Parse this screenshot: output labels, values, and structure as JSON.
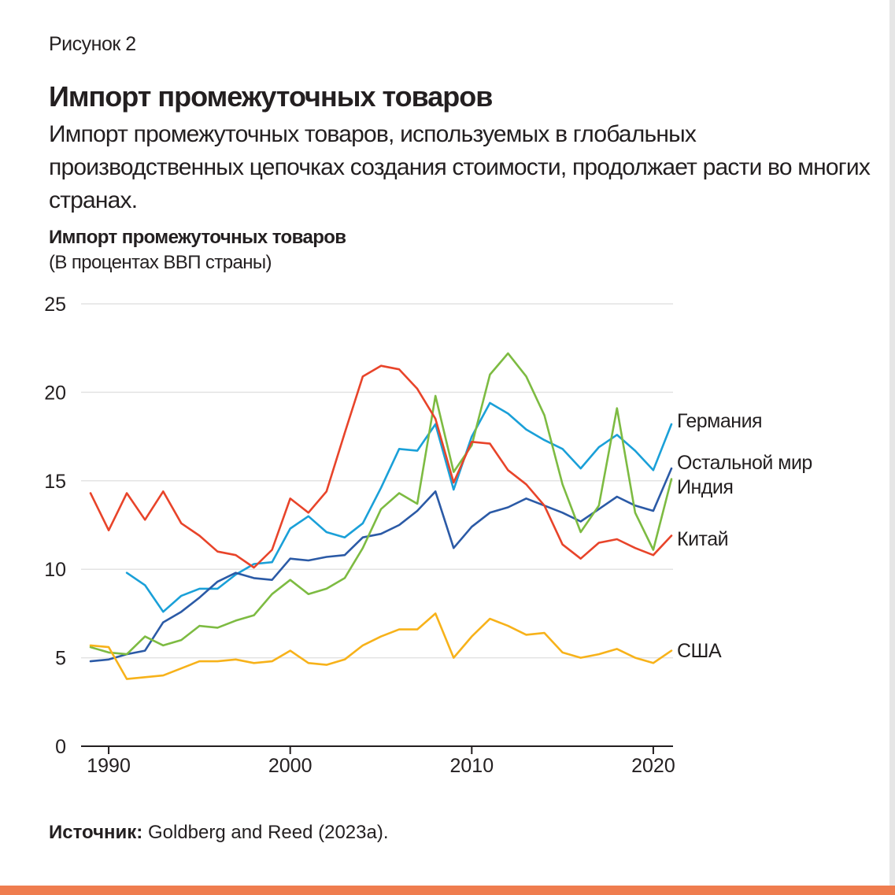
{
  "figure_label": "Рисунок 2",
  "title": "Импорт промежуточных товаров",
  "subtitle": "Импорт промежуточных товаров, используемых в глобальных производственных цепочках создания стоимости, продолжает расти во многих странах.",
  "source": {
    "label": "Источник:",
    "text": " Goldberg and Reed (2023a)."
  },
  "colors": {
    "germany": "#1aa0d8",
    "rest": "#2b5aa6",
    "india": "#7dbb42",
    "china": "#e8442a",
    "usa": "#f7b21a",
    "grid": "#e3e3e3",
    "accent": "#ef7d4f"
  },
  "chart_data": {
    "type": "line",
    "title": "Импорт промежуточных товаров",
    "ylabel": "(В процентах ВВП страны)",
    "xlabel": "",
    "xlim": [
      1989,
      2021
    ],
    "ylim": [
      0,
      25
    ],
    "x_ticks": [
      1990,
      2000,
      2010,
      2020
    ],
    "y_ticks": [
      0,
      5,
      10,
      15,
      20,
      25
    ],
    "x": [
      1989,
      1990,
      1991,
      1992,
      1993,
      1994,
      1995,
      1996,
      1997,
      1998,
      1999,
      2000,
      2001,
      2002,
      2003,
      2004,
      2005,
      2006,
      2007,
      2008,
      2009,
      2010,
      2011,
      2012,
      2013,
      2014,
      2015,
      2016,
      2017,
      2018,
      2019,
      2020,
      2021
    ],
    "series": [
      {
        "key": "germany",
        "name": "Германия",
        "values": [
          null,
          null,
          9.8,
          9.1,
          7.6,
          8.5,
          8.9,
          8.9,
          9.7,
          10.3,
          10.4,
          12.3,
          13.0,
          12.1,
          11.8,
          12.6,
          14.6,
          16.8,
          16.7,
          18.2,
          14.5,
          17.5,
          19.4,
          18.8,
          17.9,
          17.3,
          16.8,
          15.7,
          16.9,
          17.6,
          16.7,
          15.6,
          18.2
        ]
      },
      {
        "key": "rest",
        "name": "Остальной мир",
        "values": [
          4.8,
          4.9,
          5.2,
          5.4,
          7.0,
          7.6,
          8.4,
          9.3,
          9.8,
          9.5,
          9.4,
          10.6,
          10.5,
          10.7,
          10.8,
          11.8,
          12.0,
          12.5,
          13.3,
          14.4,
          11.2,
          12.4,
          13.2,
          13.5,
          14.0,
          13.6,
          13.2,
          12.7,
          13.4,
          14.1,
          13.6,
          13.3,
          15.7
        ]
      },
      {
        "key": "india",
        "name": "Индия",
        "values": [
          5.6,
          5.3,
          5.2,
          6.2,
          5.7,
          6.0,
          6.8,
          6.7,
          7.1,
          7.4,
          8.6,
          9.4,
          8.6,
          8.9,
          9.5,
          11.2,
          13.4,
          14.3,
          13.7,
          19.8,
          15.5,
          17.0,
          21.0,
          22.2,
          20.9,
          18.7,
          14.8,
          12.1,
          13.6,
          19.1,
          13.2,
          11.1,
          15.1
        ]
      },
      {
        "key": "china",
        "name": "Китай",
        "values": [
          14.3,
          12.2,
          14.3,
          12.8,
          14.4,
          12.6,
          11.9,
          11.0,
          10.8,
          10.1,
          11.1,
          14.0,
          13.2,
          14.4,
          17.7,
          20.9,
          21.5,
          21.3,
          20.2,
          18.5,
          14.9,
          17.2,
          17.1,
          15.6,
          14.8,
          13.6,
          11.4,
          10.6,
          11.5,
          11.7,
          11.2,
          10.8,
          11.9
        ]
      },
      {
        "key": "usa",
        "name": "США",
        "values": [
          5.7,
          5.6,
          3.8,
          3.9,
          4.0,
          4.4,
          4.8,
          4.8,
          4.9,
          4.7,
          4.8,
          5.4,
          4.7,
          4.6,
          4.9,
          5.7,
          6.2,
          6.6,
          6.6,
          7.5,
          5.0,
          6.2,
          7.2,
          6.8,
          6.3,
          6.4,
          5.3,
          5.0,
          5.2,
          5.5,
          5.0,
          4.7,
          5.4
        ]
      }
    ],
    "legend": "right-end labels"
  }
}
